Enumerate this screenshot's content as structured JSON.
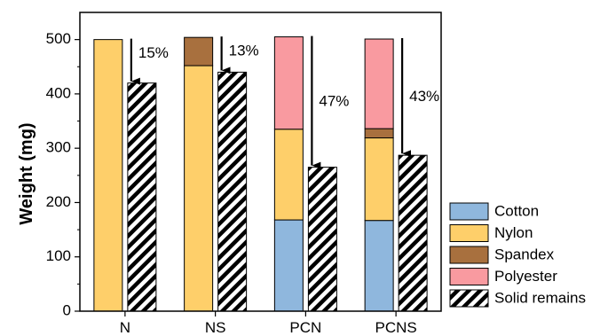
{
  "chart_data": {
    "type": "bar",
    "stacked": true,
    "ylabel": "Weight (mg)",
    "xlabel": "",
    "ylim": [
      0,
      550
    ],
    "yticks": [
      "0",
      "100",
      "200",
      "300",
      "400",
      "500"
    ],
    "categories": [
      "N",
      "NS",
      "PCN",
      "PCNS"
    ],
    "colors": {
      "Cotton": "#8fb7dd",
      "Nylon": "#fecf6a",
      "Spandex": "#a8703e",
      "Polyester": "#f99aa0",
      "Solid remains": "#ffffff"
    },
    "original_series": [
      {
        "name": "Cotton",
        "values": [
          0,
          0,
          168,
          167
        ]
      },
      {
        "name": "Nylon",
        "values": [
          500,
          452,
          167,
          152
        ]
      },
      {
        "name": "Spandex",
        "values": [
          0,
          52,
          0,
          17
        ]
      },
      {
        "name": "Polyester",
        "values": [
          0,
          0,
          170,
          165
        ]
      }
    ],
    "solid_remains": {
      "name": "Solid remains",
      "values": [
        420,
        440,
        265,
        287
      ]
    },
    "reductions": [
      "15%",
      "13%",
      "47%",
      "43%"
    ],
    "legend": [
      "Cotton",
      "Nylon",
      "Spandex",
      "Polyester",
      "Solid remains"
    ],
    "legend_position": "right"
  }
}
